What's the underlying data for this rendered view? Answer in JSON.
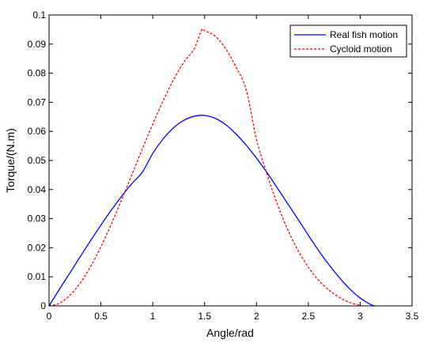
{
  "chart_data": {
    "type": "line",
    "title": "",
    "xlabel": "Angle/rad",
    "ylabel": "Torque/(N.m)",
    "xlim": [
      0,
      3.5
    ],
    "ylim": [
      0,
      0.1
    ],
    "xticks": [
      0,
      0.5,
      1,
      1.5,
      2,
      2.5,
      3,
      3.5
    ],
    "yticks": [
      0,
      0.01,
      0.02,
      0.03,
      0.04,
      0.05,
      0.06,
      0.07,
      0.08,
      0.09,
      0.1
    ],
    "xtick_labels": [
      "0",
      "0.5",
      "1",
      "1.5",
      "2",
      "2.5",
      "3",
      "3.5"
    ],
    "ytick_labels": [
      "0",
      "0.01",
      "0.02",
      "0.03",
      "0.04",
      "0.05",
      "0.06",
      "0.07",
      "0.08",
      "0.09",
      "0.1"
    ],
    "grid": false,
    "legend": "top-right",
    "series": [
      {
        "name": "Real fish motion",
        "color": "#0000ff",
        "style": "solid",
        "x": [
          0,
          0.1,
          0.2,
          0.3,
          0.4,
          0.5,
          0.6,
          0.7,
          0.8,
          0.9,
          1.0,
          1.1,
          1.2,
          1.3,
          1.4,
          1.5,
          1.6,
          1.7,
          1.8,
          1.9,
          2.0,
          2.1,
          2.2,
          2.3,
          2.4,
          2.5,
          2.6,
          2.7,
          2.8,
          2.9,
          3.0,
          3.1,
          3.14
        ],
        "y": [
          0,
          0.0057,
          0.0113,
          0.0169,
          0.0224,
          0.0278,
          0.0329,
          0.0377,
          0.0421,
          0.046,
          0.0524,
          0.0574,
          0.0612,
          0.0638,
          0.0652,
          0.0655,
          0.0645,
          0.0624,
          0.0592,
          0.0553,
          0.0508,
          0.0459,
          0.0406,
          0.0352,
          0.0298,
          0.0243,
          0.019,
          0.0141,
          0.0097,
          0.0058,
          0.0027,
          0.0005,
          0
        ]
      },
      {
        "name": "Cycloid motion",
        "color": "#ff0000",
        "style": "dashed",
        "x": [
          0,
          0.1,
          0.2,
          0.3,
          0.4,
          0.5,
          0.6,
          0.7,
          0.8,
          0.9,
          1.0,
          1.1,
          1.2,
          1.3,
          1.4,
          1.47,
          1.5,
          1.6,
          1.7,
          1.8,
          1.9,
          2.0,
          2.1,
          2.2,
          2.3,
          2.4,
          2.5,
          2.6,
          2.7,
          2.8,
          2.9,
          3.0,
          3.05
        ],
        "y": [
          0,
          0.0009,
          0.0036,
          0.0078,
          0.0135,
          0.0203,
          0.0281,
          0.0365,
          0.0452,
          0.054,
          0.0625,
          0.0705,
          0.0777,
          0.0838,
          0.0884,
          0.0948,
          0.0946,
          0.0928,
          0.0886,
          0.0823,
          0.0744,
          0.0573,
          0.0455,
          0.0351,
          0.0263,
          0.0191,
          0.0133,
          0.0088,
          0.0054,
          0.0029,
          0.0012,
          0.0002,
          0
        ]
      }
    ]
  }
}
